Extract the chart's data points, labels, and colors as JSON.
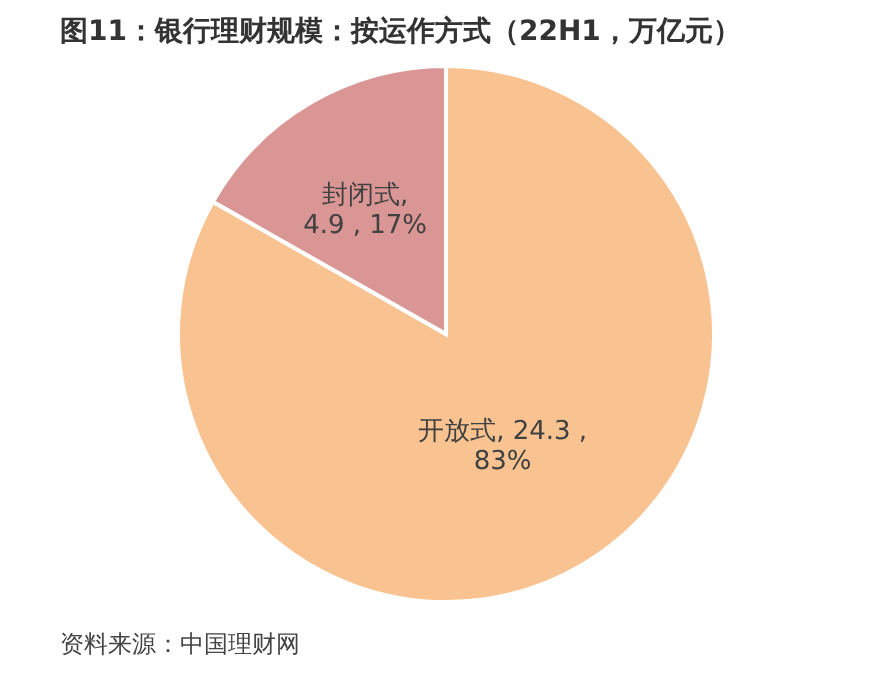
{
  "chart_data": {
    "type": "pie",
    "title": "图11：银行理财规模：按运作方式（22H1，万亿元）",
    "categories": [
      "开放式",
      "封闭式"
    ],
    "values": [
      24.3,
      4.9
    ],
    "colors": [
      "#f8c391",
      "#d99694"
    ],
    "value_labels": [
      ", 24.3 ,\n83%",
      ",\n4.9 , 17%"
    ],
    "legend": false,
    "annotations": [
      "资料来源：中国理财网"
    ]
  }
}
